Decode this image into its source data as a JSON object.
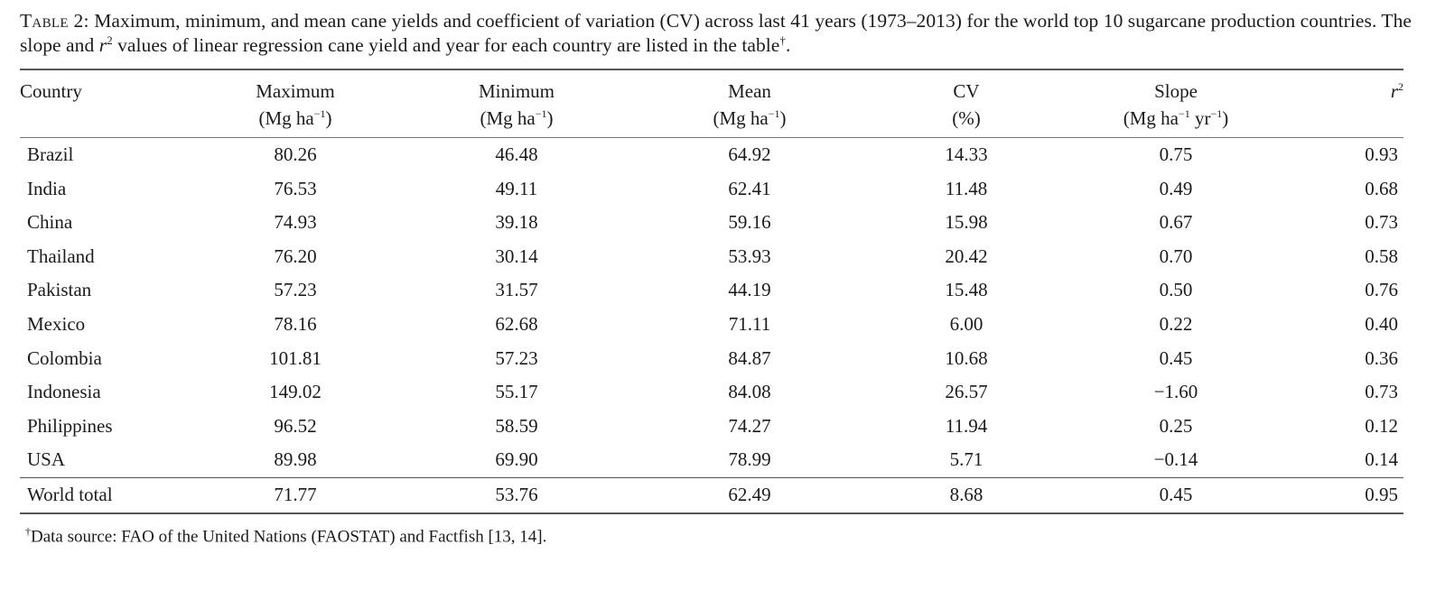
{
  "caption": {
    "label": "Table 2:",
    "text_part1": " Maximum, minimum, and mean cane yields and coefficient of variation (CV) across last 41 years (1973–2013) for the world top 10 sugarcane production countries. The slope and ",
    "r_symbol": "r",
    "r_exponent": "2",
    "text_part2": " values of linear regression cane yield and year for each country are listed in the table",
    "dagger": "†",
    "end": "."
  },
  "table": {
    "headers": {
      "country": "Country",
      "maximum": {
        "name": "Maximum",
        "unit_open": "(Mg ha",
        "unit_exp": "−1",
        "unit_close": ")"
      },
      "minimum": {
        "name": "Minimum",
        "unit_open": "(Mg ha",
        "unit_exp": "−1",
        "unit_close": ")"
      },
      "mean": {
        "name": "Mean",
        "unit_open": "(Mg ha",
        "unit_exp": "−1",
        "unit_close": ")"
      },
      "cv": {
        "name": "CV",
        "unit": "(%)"
      },
      "slope": {
        "name": "Slope",
        "unit_open": "(Mg ha",
        "unit_exp1": "−1",
        "unit_mid": " yr",
        "unit_exp2": "−1",
        "unit_close": ")"
      },
      "r2": {
        "symbol": "r",
        "exponent": "2"
      }
    },
    "rows": [
      {
        "country": "Brazil",
        "max": "80.26",
        "min": "46.48",
        "mean": "64.92",
        "cv": "14.33",
        "slope": "0.75",
        "r2": "0.93"
      },
      {
        "country": "India",
        "max": "76.53",
        "min": "49.11",
        "mean": "62.41",
        "cv": "11.48",
        "slope": "0.49",
        "r2": "0.68"
      },
      {
        "country": "China",
        "max": "74.93",
        "min": "39.18",
        "mean": "59.16",
        "cv": "15.98",
        "slope": "0.67",
        "r2": "0.73"
      },
      {
        "country": "Thailand",
        "max": "76.20",
        "min": "30.14",
        "mean": "53.93",
        "cv": "20.42",
        "slope": "0.70",
        "r2": "0.58"
      },
      {
        "country": "Pakistan",
        "max": "57.23",
        "min": "31.57",
        "mean": "44.19",
        "cv": "15.48",
        "slope": "0.50",
        "r2": "0.76"
      },
      {
        "country": "Mexico",
        "max": "78.16",
        "min": "62.68",
        "mean": "71.11",
        "cv": "6.00",
        "slope": "0.22",
        "r2": "0.40"
      },
      {
        "country": "Colombia",
        "max": "101.81",
        "min": "57.23",
        "mean": "84.87",
        "cv": "10.68",
        "slope": "0.45",
        "r2": "0.36"
      },
      {
        "country": "Indonesia",
        "max": "149.02",
        "min": "55.17",
        "mean": "84.08",
        "cv": "26.57",
        "slope": "−1.60",
        "r2": "0.73"
      },
      {
        "country": "Philippines",
        "max": "96.52",
        "min": "58.59",
        "mean": "74.27",
        "cv": "11.94",
        "slope": "0.25",
        "r2": "0.12"
      },
      {
        "country": "USA",
        "max": "89.98",
        "min": "69.90",
        "mean": "78.99",
        "cv": "5.71",
        "slope": "−0.14",
        "r2": "0.14"
      }
    ],
    "total": {
      "country": "World total",
      "max": "71.77",
      "min": "53.76",
      "mean": "62.49",
      "cv": "8.68",
      "slope": "0.45",
      "r2": "0.95"
    }
  },
  "footnote": {
    "dagger": "†",
    "text": "Data source: FAO of the United Nations (FAOSTAT) and Factfish [13, 14]."
  }
}
